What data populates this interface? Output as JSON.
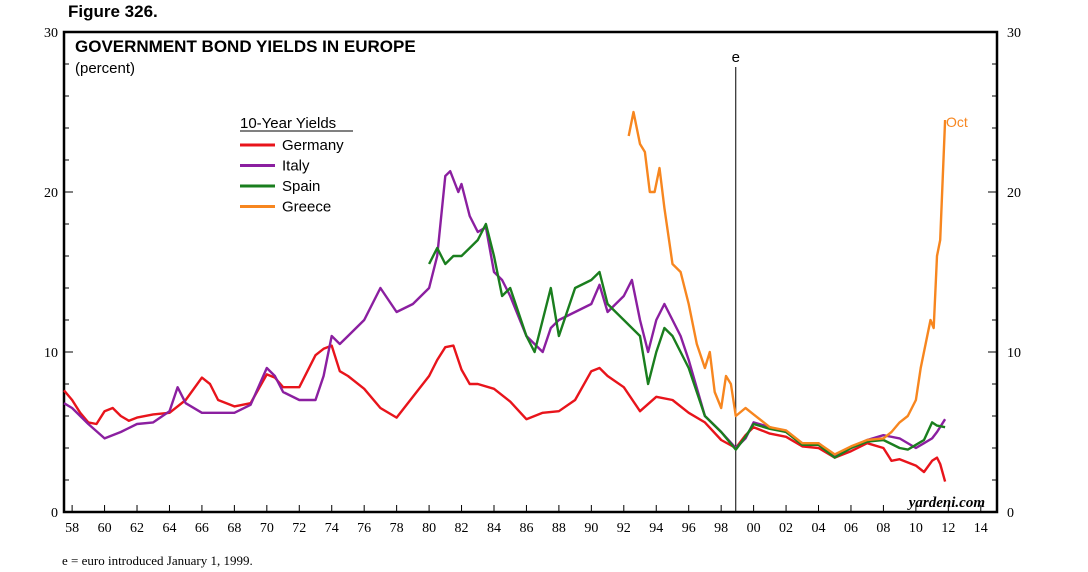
{
  "figure_label": "Figure 326.",
  "footnote": "e = euro introduced January 1, 1999.",
  "chart_data": {
    "type": "line",
    "title": "GOVERNMENT BOND YIELDS IN EUROPE",
    "subtitle": "(percent)",
    "legend_title": "10-Year Yields",
    "source": "yardeni.com",
    "event_marker": {
      "label": "e",
      "x": 1998.9
    },
    "end_annotation": "Oct",
    "xlim": [
      1957.5,
      2015
    ],
    "ylim": [
      0,
      30
    ],
    "x_ticks": [
      58,
      60,
      62,
      64,
      66,
      68,
      70,
      72,
      74,
      76,
      78,
      80,
      82,
      84,
      86,
      88,
      90,
      92,
      94,
      96,
      98,
      0,
      2,
      4,
      6,
      8,
      10,
      12,
      14
    ],
    "x_tick_labels": [
      "58",
      "60",
      "62",
      "64",
      "66",
      "68",
      "70",
      "72",
      "74",
      "76",
      "78",
      "80",
      "82",
      "84",
      "86",
      "88",
      "90",
      "92",
      "94",
      "96",
      "98",
      "00",
      "02",
      "04",
      "06",
      "08",
      "10",
      "12",
      "14"
    ],
    "y_ticks": [
      0,
      10,
      20,
      30
    ],
    "y_tick_labels_left": [
      "0",
      "10",
      "20",
      "30"
    ],
    "y_tick_labels_right": [
      "0",
      "10",
      "20",
      "30"
    ],
    "series": [
      {
        "name": "Germany",
        "color": "#e8141b",
        "x": [
          1957.5,
          1958,
          1958.5,
          1959,
          1959.5,
          1960,
          1960.5,
          1961,
          1961.5,
          1962,
          1963,
          1964,
          1965,
          1966,
          1966.5,
          1967,
          1968,
          1969,
          1970,
          1970.5,
          1971,
          1972,
          1973,
          1973.5,
          1974,
          1974.5,
          1975,
          1976,
          1977,
          1978,
          1979,
          1980,
          1980.5,
          1981,
          1981.5,
          1982,
          1982.5,
          1983,
          1984,
          1985,
          1986,
          1987,
          1988,
          1989,
          1990,
          1990.5,
          1991,
          1992,
          1993,
          1994,
          1995,
          1996,
          1997,
          1998,
          1998.9,
          1999.5,
          2000,
          2001,
          2002,
          2003,
          2004,
          2005,
          2006,
          2007,
          2008,
          2008.5,
          2009,
          2010,
          2010.5,
          2011,
          2011.3,
          2011.5,
          2011.8
        ],
        "values": [
          7.6,
          7.0,
          6.2,
          5.6,
          5.5,
          6.3,
          6.5,
          6.0,
          5.7,
          5.9,
          6.1,
          6.2,
          7.0,
          8.4,
          8.0,
          7.0,
          6.6,
          6.8,
          8.6,
          8.4,
          7.8,
          7.8,
          9.8,
          10.2,
          10.4,
          8.8,
          8.5,
          7.7,
          6.5,
          5.9,
          7.2,
          8.5,
          9.5,
          10.3,
          10.4,
          8.9,
          8.0,
          8.0,
          7.7,
          6.9,
          5.8,
          6.2,
          6.3,
          7.0,
          8.8,
          9.0,
          8.5,
          7.8,
          6.3,
          7.2,
          7.0,
          6.2,
          5.6,
          4.5,
          4.0,
          4.8,
          5.3,
          4.9,
          4.7,
          4.1,
          4.0,
          3.4,
          3.8,
          4.3,
          4.0,
          3.2,
          3.3,
          2.9,
          2.5,
          3.2,
          3.4,
          3.0,
          1.9
        ]
      },
      {
        "name": "Italy",
        "color": "#8b1fa0",
        "x": [
          1957.5,
          1958,
          1959,
          1960,
          1961,
          1962,
          1963,
          1964,
          1964.5,
          1965,
          1966,
          1968,
          1969,
          1970,
          1970.5,
          1971,
          1972,
          1973,
          1973.5,
          1974,
          1974.5,
          1975,
          1976,
          1977,
          1978,
          1979,
          1980,
          1980.5,
          1981,
          1981.3,
          1981.8,
          1982,
          1982.5,
          1983,
          1983.5,
          1984,
          1984.5,
          1985,
          1986,
          1987,
          1987.5,
          1988,
          1989,
          1990,
          1990.5,
          1991,
          1992,
          1992.5,
          1993,
          1993.5,
          1994,
          1994.5,
          1995,
          1995.5,
          1996,
          1997,
          1998,
          1998.9,
          1999.5,
          2000,
          2001,
          2002,
          2003,
          2004,
          2005,
          2006,
          2007,
          2008,
          2009,
          2010,
          2010.5,
          2011,
          2011.3,
          2011.8
        ],
        "values": [
          6.8,
          6.5,
          5.5,
          4.6,
          5.0,
          5.5,
          5.6,
          6.3,
          7.8,
          6.8,
          6.2,
          6.2,
          6.7,
          9.0,
          8.5,
          7.5,
          7.0,
          7.0,
          8.5,
          11.0,
          10.5,
          11.0,
          12.0,
          14.0,
          12.5,
          13.0,
          14.0,
          16.0,
          21.0,
          21.3,
          20.0,
          20.5,
          18.5,
          17.5,
          17.8,
          15.0,
          14.5,
          13.5,
          11.0,
          10.0,
          11.5,
          12.0,
          12.5,
          13.0,
          14.2,
          12.5,
          13.5,
          14.5,
          12.0,
          10.0,
          12.0,
          13.0,
          12.0,
          11.0,
          9.5,
          6.0,
          5.0,
          4.0,
          4.6,
          5.6,
          5.3,
          5.0,
          4.3,
          4.3,
          3.5,
          4.0,
          4.5,
          4.8,
          4.6,
          4.0,
          4.3,
          4.6,
          5.0,
          5.8
        ]
      },
      {
        "name": "Spain",
        "color": "#1a7e1e",
        "x": [
          1980,
          1980.5,
          1981,
          1981.5,
          1982,
          1982.5,
          1983,
          1983.5,
          1984,
          1984.5,
          1985,
          1986,
          1986.5,
          1987,
          1987.5,
          1988,
          1989,
          1990,
          1990.5,
          1991,
          1992,
          1993,
          1993.5,
          1994,
          1994.5,
          1995,
          1996,
          1997,
          1998,
          1998.9,
          1999.5,
          2000,
          2001,
          2002,
          2003,
          2004,
          2005,
          2006,
          2007,
          2008,
          2009,
          2009.5,
          2010,
          2010.5,
          2011,
          2011.3,
          2011.8
        ],
        "values": [
          15.5,
          16.5,
          15.5,
          16.0,
          16.0,
          16.5,
          17.0,
          18.0,
          16.0,
          13.5,
          14.0,
          11.0,
          10.0,
          12.0,
          14.0,
          11.0,
          14.0,
          14.5,
          15.0,
          13.0,
          12.0,
          11.0,
          8.0,
          10.0,
          11.5,
          11.0,
          9.0,
          6.0,
          5.0,
          3.9,
          4.7,
          5.5,
          5.2,
          5.0,
          4.2,
          4.2,
          3.4,
          4.0,
          4.4,
          4.5,
          4.0,
          3.9,
          4.2,
          4.5,
          5.6,
          5.4,
          5.3
        ]
      },
      {
        "name": "Greece",
        "color": "#f7861f",
        "x": [
          1992.3,
          1992.6,
          1993,
          1993.3,
          1993.6,
          1993.9,
          1994.2,
          1994.5,
          1995,
          1995.5,
          1996,
          1996.5,
          1997,
          1997.3,
          1997.6,
          1998,
          1998.3,
          1998.6,
          1998.9,
          1999.5,
          2000,
          2001,
          2002,
          2003,
          2004,
          2005,
          2006,
          2007,
          2008,
          2008.5,
          2009,
          2009.5,
          2010,
          2010.3,
          2010.6,
          2010.9,
          2011.1,
          2011.3,
          2011.5,
          2011.8
        ],
        "values": [
          23.5,
          25.0,
          23.0,
          22.5,
          20.0,
          20.0,
          21.5,
          19.0,
          15.5,
          15.0,
          13.0,
          10.5,
          9.0,
          10.0,
          7.5,
          6.5,
          8.5,
          8.0,
          6.0,
          6.5,
          6.1,
          5.3,
          5.1,
          4.3,
          4.3,
          3.6,
          4.1,
          4.5,
          4.6,
          5.0,
          5.6,
          6.0,
          7.0,
          9.0,
          10.5,
          12.0,
          11.5,
          16.0,
          17.0,
          24.5
        ]
      }
    ]
  }
}
